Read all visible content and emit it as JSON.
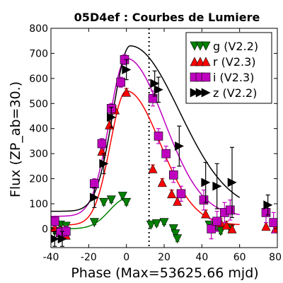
{
  "chart_data": {
    "type": "scatter",
    "title": "05D4ef : Courbes de Lumiere",
    "xlabel": "Phase (Max=53625.66 mjd)",
    "ylabel": "Flux (ZP_ab=30.)",
    "xlim": [
      -40,
      80
    ],
    "ylim": [
      -75,
      800
    ],
    "xticks": [
      "-40",
      "-20",
      "0",
      "20",
      "40",
      "60",
      "80"
    ],
    "yticks": [
      "0",
      "100",
      "200",
      "300",
      "400",
      "500",
      "600",
      "700",
      "800"
    ],
    "vline_x": 12,
    "legend_position": "top-right",
    "series": [
      {
        "name": "g (V2.2)",
        "color": "#008000",
        "marker": "triangle-down",
        "points": [
          {
            "x": -38,
            "y": -10,
            "err": 10
          },
          {
            "x": -35,
            "y": 15,
            "err": 8
          },
          {
            "x": -32,
            "y": 10,
            "err": 8
          },
          {
            "x": -17,
            "y": 25,
            "err": 8
          },
          {
            "x": -12,
            "y": 105,
            "err": 10
          },
          {
            "x": -8,
            "y": 115,
            "err": 10
          },
          {
            "x": -2,
            "y": 130,
            "err": 10
          },
          {
            "x": 0,
            "y": 105,
            "err": 10
          },
          {
            "x": 13,
            "y": 15,
            "err": 8
          },
          {
            "x": 16,
            "y": 20,
            "err": 8
          },
          {
            "x": 20,
            "y": 25,
            "err": 8
          },
          {
            "x": 25,
            "y": 0,
            "err": 10
          },
          {
            "x": 26,
            "y": -20,
            "err": 10
          },
          {
            "x": 27,
            "y": -40,
            "err": 10
          },
          {
            "x": 44,
            "y": 15,
            "err": 10
          },
          {
            "x": 48,
            "y": 5,
            "err": 10
          },
          {
            "x": 50,
            "y": -10,
            "err": 10
          },
          {
            "x": 55,
            "y": 0,
            "err": 10
          }
        ]
      },
      {
        "name": "r (V2.3)",
        "color": "#ff0000",
        "marker": "triangle-up",
        "points": [
          {
            "x": -38,
            "y": 5,
            "err": 10
          },
          {
            "x": -35,
            "y": -5,
            "err": 10
          },
          {
            "x": -32,
            "y": -25,
            "err": 10
          },
          {
            "x": -17,
            "y": 180,
            "err": 10
          },
          {
            "x": -13,
            "y": 310,
            "err": 15
          },
          {
            "x": -9,
            "y": 415,
            "err": 15
          },
          {
            "x": -6,
            "y": 475,
            "err": 15
          },
          {
            "x": 0,
            "y": 545,
            "err": 15
          },
          {
            "x": 14,
            "y": 240,
            "err": 15
          },
          {
            "x": 19,
            "y": 185,
            "err": 15
          },
          {
            "x": 24,
            "y": 140,
            "err": 15
          },
          {
            "x": 27,
            "y": 110,
            "err": 15
          },
          {
            "x": 42,
            "y": 60,
            "err": 15
          },
          {
            "x": 50,
            "y": 25,
            "err": 15
          },
          {
            "x": 53,
            "y": 15,
            "err": 15
          },
          {
            "x": 56,
            "y": 0,
            "err": 15
          },
          {
            "x": 74,
            "y": 10,
            "err": 15
          },
          {
            "x": 79,
            "y": 0,
            "err": 15
          }
        ]
      },
      {
        "name": "i (V2.3)",
        "color": "#bf00bf",
        "marker": "square",
        "points": [
          {
            "x": -38,
            "y": 30,
            "err": 20
          },
          {
            "x": -35,
            "y": -15,
            "err": 20
          },
          {
            "x": -32,
            "y": -10,
            "err": 20
          },
          {
            "x": -17,
            "y": 180,
            "err": 20
          },
          {
            "x": -13,
            "y": 340,
            "err": 20
          },
          {
            "x": -8,
            "y": 480,
            "err": 20
          },
          {
            "x": -3,
            "y": 585,
            "err": 20
          },
          {
            "x": -1,
            "y": 675,
            "err": 20
          },
          {
            "x": 14,
            "y": 520,
            "err": 30
          },
          {
            "x": 17,
            "y": 370,
            "err": 30
          },
          {
            "x": 21,
            "y": 300,
            "err": 30
          },
          {
            "x": 25,
            "y": 215,
            "err": 30
          },
          {
            "x": 29,
            "y": 140,
            "err": 30
          },
          {
            "x": 41,
            "y": 115,
            "err": 40
          },
          {
            "x": 45,
            "y": 0,
            "err": 40
          },
          {
            "x": 48,
            "y": 30,
            "err": 40
          },
          {
            "x": 52,
            "y": 65,
            "err": 40
          },
          {
            "x": 55,
            "y": 75,
            "err": 40
          },
          {
            "x": 74,
            "y": 65,
            "err": 40
          },
          {
            "x": 78,
            "y": 25,
            "err": 40
          }
        ]
      },
      {
        "name": "z (V2.2)",
        "color": "#000000",
        "marker": "triangle-right",
        "points": [
          {
            "x": -38,
            "y": -40,
            "err": 30
          },
          {
            "x": -34,
            "y": -40,
            "err": 30
          },
          {
            "x": -17,
            "y": 125,
            "err": 40
          },
          {
            "x": -12,
            "y": 260,
            "err": 40
          },
          {
            "x": -8,
            "y": 445,
            "err": 40
          },
          {
            "x": 0,
            "y": 635,
            "err": 40
          },
          {
            "x": 15,
            "y": 580,
            "err": 50
          },
          {
            "x": 17,
            "y": 555,
            "err": 50
          },
          {
            "x": 28,
            "y": 330,
            "err": 80
          },
          {
            "x": 42,
            "y": 185,
            "err": 80
          },
          {
            "x": 48,
            "y": 170,
            "err": 90
          },
          {
            "x": 56,
            "y": 185,
            "err": 140
          },
          {
            "x": 75,
            "y": 95,
            "err": 40
          }
        ]
      }
    ],
    "fit_curves": [
      {
        "name": "g fit",
        "color": "#008000",
        "peak_x": 0,
        "peak_y": 120,
        "rise": 9,
        "fall": 15,
        "base": 0,
        "x_end": 0
      },
      {
        "name": "r fit",
        "color": "#ff0000",
        "peak_x": 0,
        "peak_y": 550,
        "rise": 8.5,
        "fall": 18,
        "base": 15,
        "x_end": 60
      },
      {
        "name": "i fit",
        "color": "#bf00bf",
        "peak_x": 0,
        "peak_y": 680,
        "rise": 9,
        "fall": 20,
        "base": 50,
        "x_end": 60
      },
      {
        "name": "z fit",
        "color": "#000000",
        "peak_x": 2,
        "peak_y": 730,
        "rise": 9,
        "fall": 26,
        "base": 70,
        "x_end": 60
      }
    ]
  }
}
